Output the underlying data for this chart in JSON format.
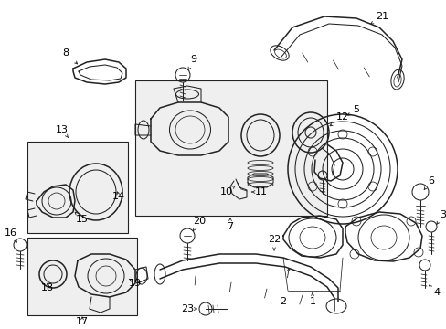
{
  "bg_color": "#ffffff",
  "line_color": "#222222",
  "box_fill": "#efefef",
  "figsize": [
    4.89,
    3.6
  ],
  "dpi": 100
}
